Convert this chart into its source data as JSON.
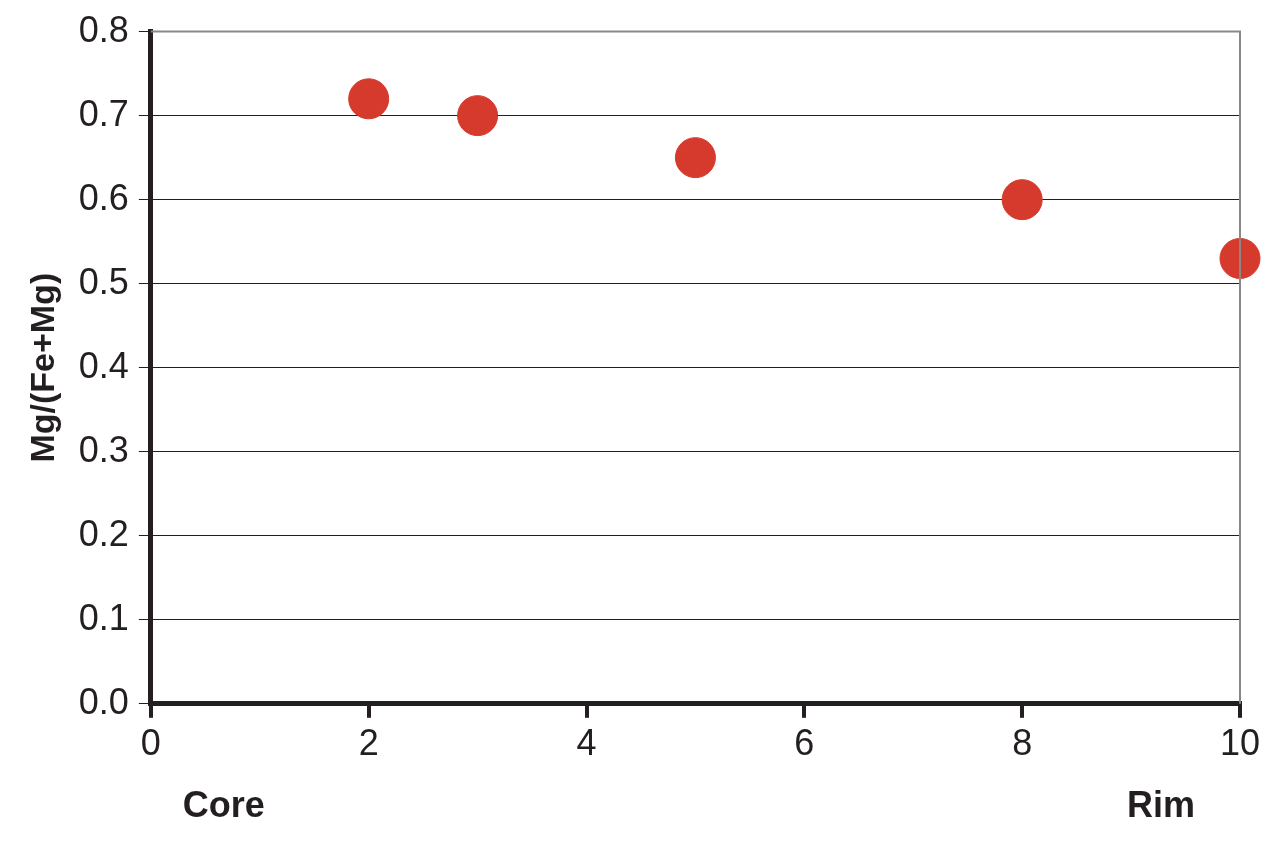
{
  "chart_data": {
    "type": "scatter",
    "ylabel": "Mg/(Fe+Mg)",
    "x": [
      2,
      3,
      5,
      8,
      10
    ],
    "series": [
      {
        "color": "#d63a2c",
        "values": [
          0.72,
          0.7,
          0.65,
          0.6,
          0.53
        ]
      }
    ],
    "xlim": [
      0,
      10
    ],
    "xticks": [
      0,
      2,
      4,
      6,
      8,
      10
    ],
    "ylim": [
      0,
      0.8
    ],
    "yticks": [
      {
        "value": 0,
        "label": "0.0"
      },
      {
        "value": 0.1,
        "label": "0.1"
      },
      {
        "value": 0.2,
        "label": "0.2"
      },
      {
        "value": 0.3,
        "label": "0.3"
      },
      {
        "value": 0.4,
        "label": "0.4"
      },
      {
        "value": 0.5,
        "label": "0.5"
      },
      {
        "value": 0.6,
        "label": "0.6"
      },
      {
        "value": 0.7,
        "label": "0.7"
      },
      {
        "value": 0.8,
        "label": "0.8"
      }
    ],
    "grid": "y",
    "legend": false,
    "marker": "circle",
    "annotations": [
      "Core",
      "Rim"
    ]
  }
}
